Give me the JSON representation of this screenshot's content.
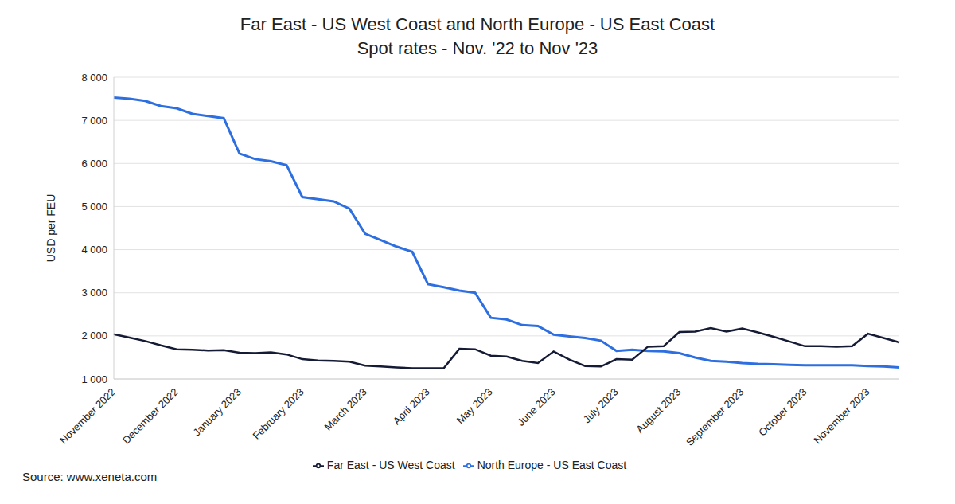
{
  "chart_data": {
    "type": "line",
    "title": "Far East - US West Coast and North Europe - US East Coast",
    "subtitle": "Spot rates - Nov. '22 to Nov '23",
    "y_label": "USD per FEU",
    "annotation": "Source: www.xeneta.com",
    "categories": [
      "November 2022",
      null,
      null,
      null,
      "December 2022",
      null,
      null,
      null,
      "January 2023",
      null,
      null,
      null,
      "February 2023",
      null,
      null,
      null,
      "March 2023",
      null,
      null,
      null,
      "April 2023",
      null,
      null,
      null,
      "May 2023",
      null,
      null,
      null,
      "June 2023",
      null,
      null,
      null,
      "July 2023",
      null,
      null,
      null,
      "August 2023",
      null,
      null,
      null,
      "September 2023",
      null,
      null,
      null,
      "October 2023",
      null,
      null,
      null,
      "November 2023",
      null,
      null
    ],
    "series": [
      {
        "name": "North Europe - US East Coast",
        "color": "#2d6fe0",
        "values": [
          7530,
          7500,
          7450,
          7330,
          7280,
          7150,
          7100,
          7050,
          6230,
          6100,
          6050,
          5960,
          5220,
          5170,
          5120,
          4950,
          4370,
          4220,
          4070,
          3950,
          3200,
          3130,
          3050,
          3000,
          2420,
          2380,
          2250,
          2230,
          2030,
          1990,
          1950,
          1890,
          1650,
          1680,
          1650,
          1640,
          1600,
          1500,
          1420,
          1400,
          1370,
          1350,
          1340,
          1330,
          1320,
          1320,
          1320,
          1320,
          1300,
          1290,
          1270
        ]
      },
      {
        "name": "Far East - US West Coast",
        "color": "#151a35",
        "values": [
          2040,
          1960,
          1880,
          1780,
          1690,
          1680,
          1660,
          1670,
          1610,
          1600,
          1620,
          1570,
          1460,
          1430,
          1420,
          1400,
          1310,
          1290,
          1270,
          1250,
          1250,
          1250,
          1700,
          1690,
          1540,
          1520,
          1420,
          1370,
          1640,
          1450,
          1300,
          1290,
          1460,
          1450,
          1750,
          1760,
          2090,
          2100,
          2180,
          2100,
          2170,
          2080,
          1980,
          1870,
          1760,
          1760,
          1750,
          1760,
          2050,
          1950,
          1850
        ]
      }
    ],
    "ylim": [
      1000,
      8000
    ],
    "yticks": [
      {
        "value": 1000,
        "label": "1 000"
      },
      {
        "value": 2000,
        "label": "2 000"
      },
      {
        "value": 3000,
        "label": "3 000"
      },
      {
        "value": 4000,
        "label": "4 000"
      },
      {
        "value": 5000,
        "label": "5 000"
      },
      {
        "value": 6000,
        "label": "6 000"
      },
      {
        "value": 7000,
        "label": "7 000"
      },
      {
        "value": 8000,
        "label": "8 000"
      }
    ],
    "grid": true,
    "legend": "bottom"
  }
}
